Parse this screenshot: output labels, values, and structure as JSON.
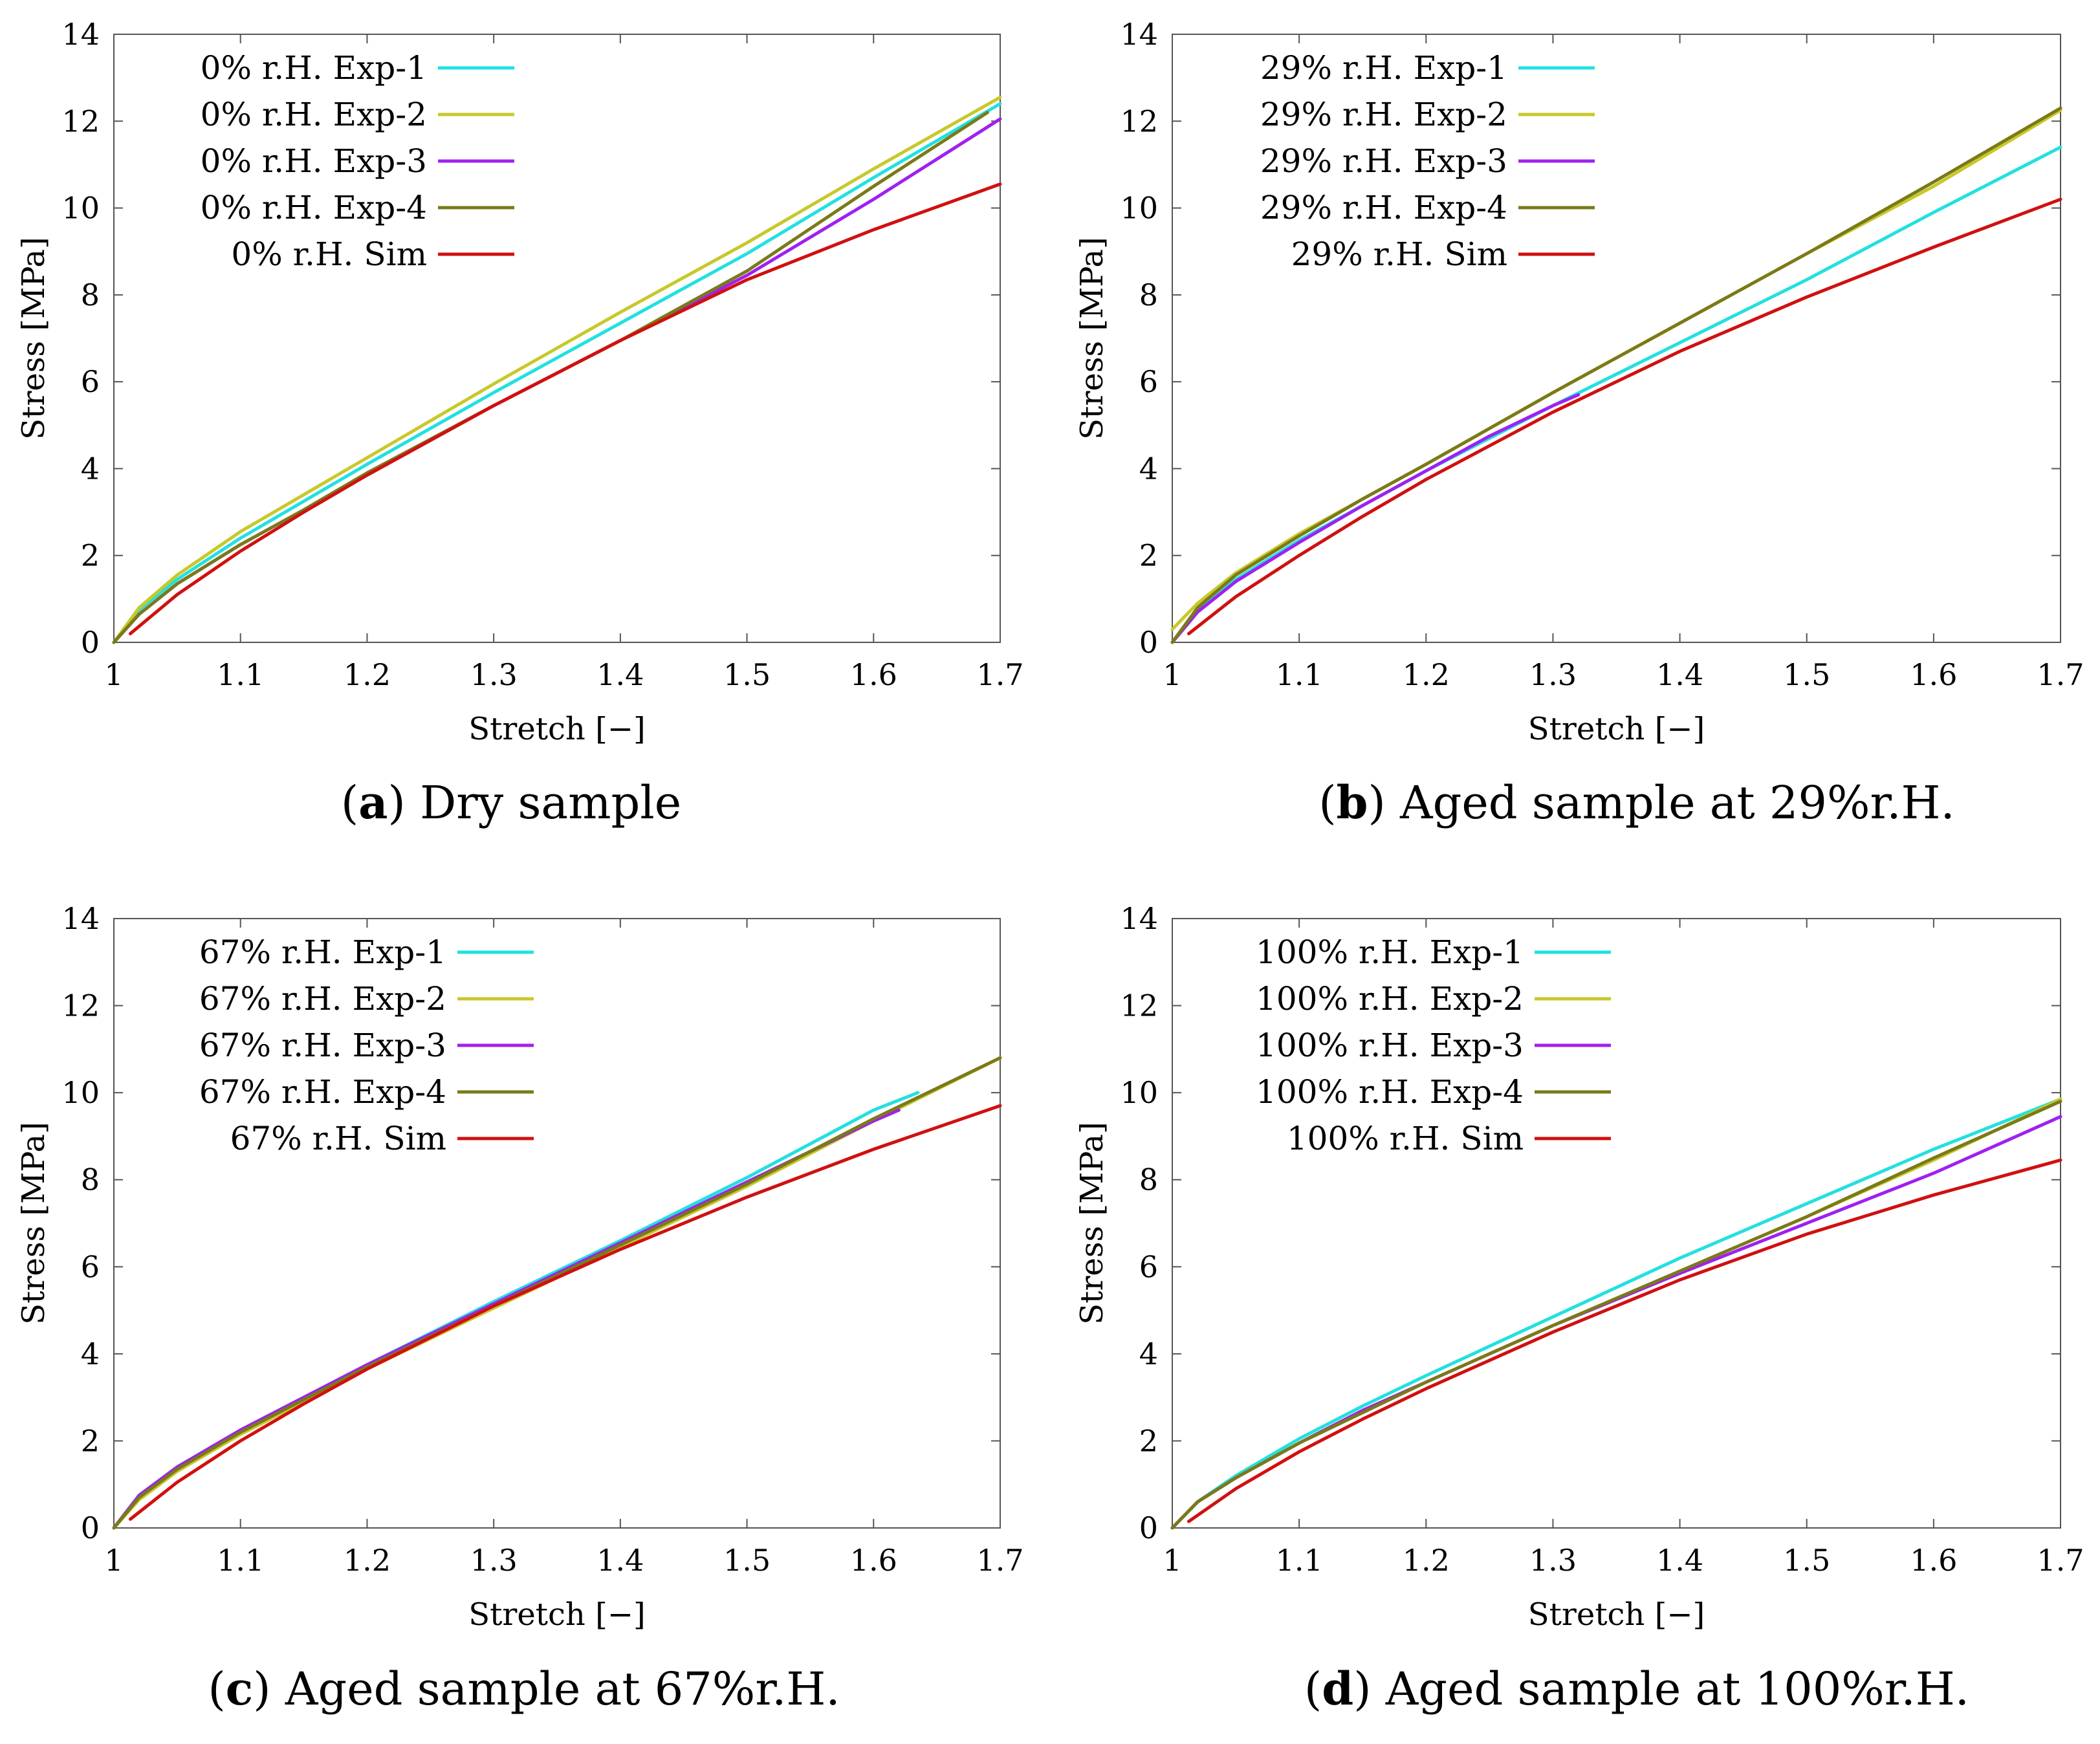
{
  "chart_data": [
    {
      "type": "line",
      "caption_letter": "a",
      "caption_text": "Dry sample",
      "xlabel": "Stretch [−]",
      "ylabel": "Stress [MPa]",
      "xlim": [
        1,
        1.7
      ],
      "ylim": [
        0,
        14
      ],
      "xticks": [
        "1",
        "1.1",
        "1.2",
        "1.3",
        "1.4",
        "1.5",
        "1.6",
        "1.7"
      ],
      "yticks": [
        "0",
        "2",
        "4",
        "6",
        "8",
        "10",
        "12",
        "14"
      ],
      "legend_position": "top-left",
      "series": [
        {
          "name": "0% r.H. Exp-1",
          "color": "#22e0e0",
          "x": [
            1.0,
            1.02,
            1.05,
            1.1,
            1.15,
            1.2,
            1.3,
            1.4,
            1.5,
            1.6,
            1.7
          ],
          "y": [
            0,
            0.75,
            1.45,
            2.4,
            3.25,
            4.1,
            5.75,
            7.35,
            8.95,
            10.7,
            12.4
          ]
        },
        {
          "name": "0% r.H. Exp-2",
          "color": "#c8c82a",
          "x": [
            1.0,
            1.02,
            1.05,
            1.1,
            1.15,
            1.2,
            1.3,
            1.4,
            1.5,
            1.6,
            1.7
          ],
          "y": [
            0,
            0.8,
            1.55,
            2.55,
            3.4,
            4.25,
            5.95,
            7.6,
            9.2,
            10.9,
            12.55
          ]
        },
        {
          "name": "0% r.H. Exp-3",
          "color": "#a020f0",
          "x": [
            1.0,
            1.02,
            1.05,
            1.1,
            1.15,
            1.2,
            1.3,
            1.4,
            1.5,
            1.6,
            1.7
          ],
          "y": [
            0,
            0.65,
            1.35,
            2.25,
            3.05,
            3.9,
            5.45,
            6.95,
            8.45,
            10.2,
            12.05
          ]
        },
        {
          "name": "0% r.H. Exp-4",
          "color": "#7a7a18",
          "x": [
            1.0,
            1.02,
            1.05,
            1.1,
            1.15,
            1.2,
            1.3,
            1.4,
            1.5,
            1.6,
            1.69
          ],
          "y": [
            0,
            0.65,
            1.35,
            2.25,
            3.05,
            3.9,
            5.45,
            6.95,
            8.55,
            10.5,
            12.2
          ]
        },
        {
          "name": "0% r.H. Sim",
          "color": "#d01010",
          "x": [
            1.013,
            1.05,
            1.1,
            1.15,
            1.2,
            1.3,
            1.4,
            1.5,
            1.6,
            1.7
          ],
          "y": [
            0.2,
            1.1,
            2.1,
            3.0,
            3.85,
            5.45,
            6.95,
            8.35,
            9.5,
            10.55
          ]
        }
      ]
    },
    {
      "type": "line",
      "caption_letter": "b",
      "caption_text": "Aged sample at 29%r.H.",
      "xlabel": "Stretch [−]",
      "ylabel": "Stress [MPa]",
      "xlim": [
        1,
        1.7
      ],
      "ylim": [
        0,
        14
      ],
      "xticks": [
        "1",
        "1.1",
        "1.2",
        "1.3",
        "1.4",
        "1.5",
        "1.6",
        "1.7"
      ],
      "yticks": [
        "0",
        "2",
        "4",
        "6",
        "8",
        "10",
        "12",
        "14"
      ],
      "legend_position": "top-left",
      "series": [
        {
          "name": "29% r.H. Exp-1",
          "color": "#22e0e0",
          "x": [
            1.0,
            1.02,
            1.05,
            1.1,
            1.15,
            1.2,
            1.3,
            1.4,
            1.5,
            1.6,
            1.7
          ],
          "y": [
            0,
            0.75,
            1.45,
            2.35,
            3.15,
            3.95,
            5.45,
            6.9,
            8.35,
            9.9,
            11.4
          ]
        },
        {
          "name": "29% r.H. Exp-2",
          "color": "#c8c82a",
          "x": [
            1.0,
            1.02,
            1.05,
            1.1,
            1.15,
            1.2,
            1.3,
            1.4,
            1.5,
            1.6,
            1.7
          ],
          "y": [
            0.3,
            0.9,
            1.6,
            2.5,
            3.3,
            4.1,
            5.75,
            7.35,
            8.95,
            10.5,
            12.25
          ]
        },
        {
          "name": "29% r.H. Exp-3",
          "color": "#a020f0",
          "x": [
            1.0,
            1.02,
            1.05,
            1.1,
            1.15,
            1.2,
            1.25,
            1.3,
            1.32
          ],
          "y": [
            0,
            0.7,
            1.4,
            2.3,
            3.15,
            3.95,
            4.75,
            5.45,
            5.7
          ]
        },
        {
          "name": "29% r.H. Exp-4",
          "color": "#7a7a18",
          "x": [
            1.0,
            1.02,
            1.05,
            1.1,
            1.15,
            1.2,
            1.3,
            1.4,
            1.5,
            1.6,
            1.7
          ],
          "y": [
            0,
            0.8,
            1.55,
            2.45,
            3.3,
            4.1,
            5.75,
            7.35,
            8.95,
            10.6,
            12.3
          ]
        },
        {
          "name": "29% r.H. Sim",
          "color": "#d01010",
          "x": [
            1.013,
            1.05,
            1.1,
            1.15,
            1.2,
            1.3,
            1.4,
            1.5,
            1.6,
            1.7
          ],
          "y": [
            0.2,
            1.05,
            2.0,
            2.9,
            3.75,
            5.3,
            6.7,
            7.95,
            9.1,
            10.2
          ]
        }
      ]
    },
    {
      "type": "line",
      "caption_letter": "c",
      "caption_text": "Aged sample at 67%r.H.",
      "xlabel": "Stretch [−]",
      "ylabel": "Stress [MPa]",
      "xlim": [
        1,
        1.7
      ],
      "ylim": [
        0,
        14
      ],
      "xticks": [
        "1",
        "1.1",
        "1.2",
        "1.3",
        "1.4",
        "1.5",
        "1.6",
        "1.7"
      ],
      "yticks": [
        "0",
        "2",
        "4",
        "6",
        "8",
        "10",
        "12",
        "14"
      ],
      "legend_position": "top-left",
      "series": [
        {
          "name": "67% r.H. Exp-1",
          "color": "#22e0e0",
          "x": [
            1.0,
            1.02,
            1.05,
            1.1,
            1.15,
            1.2,
            1.3,
            1.4,
            1.5,
            1.6,
            1.635
          ],
          "y": [
            0,
            0.75,
            1.4,
            2.25,
            3.0,
            3.75,
            5.2,
            6.6,
            8.05,
            9.6,
            10.0
          ]
        },
        {
          "name": "67% r.H. Exp-2",
          "color": "#c8c82a",
          "x": [
            1.0,
            1.02,
            1.05,
            1.1,
            1.15,
            1.2,
            1.3,
            1.4,
            1.5,
            1.6,
            1.7
          ],
          "y": [
            0,
            0.65,
            1.3,
            2.15,
            2.9,
            3.65,
            5.05,
            6.45,
            7.85,
            9.35,
            10.8
          ]
        },
        {
          "name": "67% r.H. Exp-3",
          "color": "#a020f0",
          "x": [
            1.0,
            1.02,
            1.05,
            1.1,
            1.15,
            1.2,
            1.3,
            1.4,
            1.5,
            1.6,
            1.62
          ],
          "y": [
            0,
            0.75,
            1.4,
            2.25,
            3.0,
            3.75,
            5.15,
            6.55,
            7.95,
            9.35,
            9.6
          ]
        },
        {
          "name": "67% r.H. Exp-4",
          "color": "#7a7a18",
          "x": [
            1.0,
            1.02,
            1.05,
            1.1,
            1.15,
            1.2,
            1.3,
            1.4,
            1.5,
            1.6,
            1.7
          ],
          "y": [
            0,
            0.7,
            1.35,
            2.2,
            2.95,
            3.7,
            5.1,
            6.5,
            7.9,
            9.4,
            10.8
          ]
        },
        {
          "name": "67% r.H. Sim",
          "color": "#d01010",
          "x": [
            1.013,
            1.05,
            1.1,
            1.15,
            1.2,
            1.3,
            1.4,
            1.5,
            1.6,
            1.7
          ],
          "y": [
            0.2,
            1.05,
            2.0,
            2.85,
            3.65,
            5.1,
            6.4,
            7.6,
            8.7,
            9.7
          ]
        }
      ]
    },
    {
      "type": "line",
      "caption_letter": "d",
      "caption_text": "Aged sample at 100%r.H.",
      "xlabel": "Stretch [−]",
      "ylabel": "Stress [MPa]",
      "xlim": [
        1,
        1.7
      ],
      "ylim": [
        0,
        14
      ],
      "xticks": [
        "1",
        "1.1",
        "1.2",
        "1.3",
        "1.4",
        "1.5",
        "1.6",
        "1.7"
      ],
      "yticks": [
        "0",
        "2",
        "4",
        "6",
        "8",
        "10",
        "12",
        "14"
      ],
      "legend_position": "top-left",
      "series": [
        {
          "name": "100% r.H. Exp-1",
          "color": "#22e0e0",
          "x": [
            1.0,
            1.02,
            1.05,
            1.1,
            1.15,
            1.2,
            1.3,
            1.4,
            1.5,
            1.6,
            1.7
          ],
          "y": [
            0,
            0.6,
            1.2,
            2.05,
            2.8,
            3.5,
            4.85,
            6.2,
            7.45,
            8.7,
            9.85
          ]
        },
        {
          "name": "100% r.H. Exp-2",
          "color": "#c8c82a",
          "x": [
            1.0,
            1.02,
            1.05,
            1.1,
            1.15,
            1.2,
            1.3,
            1.4,
            1.5,
            1.6,
            1.7
          ],
          "y": [
            0,
            0.6,
            1.15,
            1.95,
            2.7,
            3.35,
            4.65,
            5.9,
            7.15,
            8.45,
            9.85
          ]
        },
        {
          "name": "100% r.H. Exp-3",
          "color": "#a020f0",
          "x": [
            1.0,
            1.02,
            1.05,
            1.1,
            1.15,
            1.2,
            1.3,
            1.4,
            1.5,
            1.6,
            1.7
          ],
          "y": [
            0,
            0.6,
            1.15,
            1.95,
            2.7,
            3.35,
            4.65,
            5.85,
            7.0,
            8.15,
            9.45
          ]
        },
        {
          "name": "100% r.H. Exp-4",
          "color": "#7a7a18",
          "x": [
            1.0,
            1.02,
            1.05,
            1.1,
            1.15,
            1.2,
            1.3,
            1.4,
            1.5,
            1.6,
            1.7
          ],
          "y": [
            0,
            0.6,
            1.15,
            1.95,
            2.65,
            3.35,
            4.65,
            5.9,
            7.15,
            8.5,
            9.8
          ]
        },
        {
          "name": "100% r.H. Sim",
          "color": "#d01010",
          "x": [
            1.013,
            1.05,
            1.1,
            1.15,
            1.2,
            1.3,
            1.4,
            1.5,
            1.6,
            1.7
          ],
          "y": [
            0.15,
            0.9,
            1.75,
            2.5,
            3.2,
            4.5,
            5.7,
            6.75,
            7.65,
            8.45
          ]
        }
      ]
    }
  ]
}
